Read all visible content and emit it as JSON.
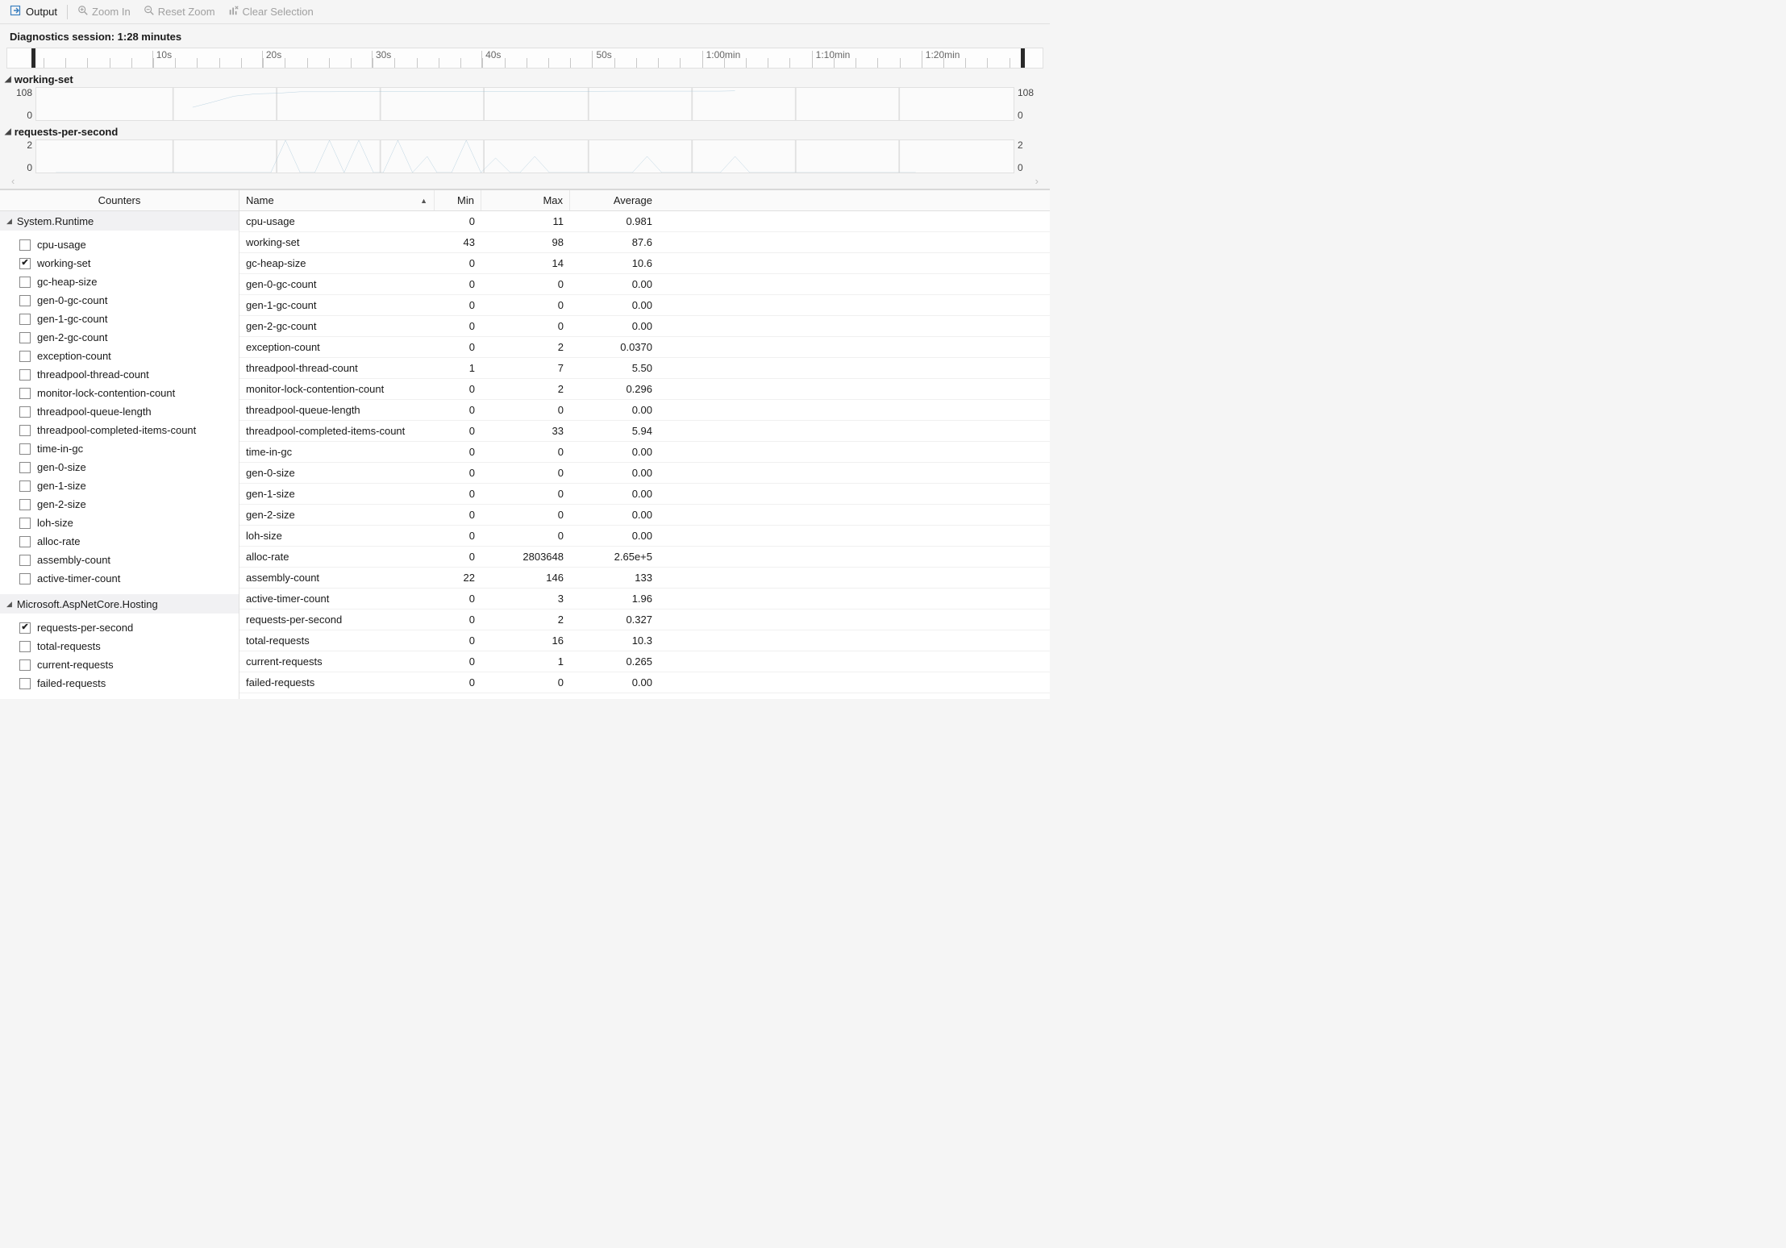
{
  "toolbar": {
    "output_label": "Output",
    "zoom_in_label": "Zoom In",
    "reset_zoom_label": "Reset Zoom",
    "clear_selection_label": "Clear Selection"
  },
  "session": {
    "label": "Diagnostics session: 1:28 minutes"
  },
  "timeline": {
    "duration_sec": 88,
    "majors": [
      {
        "pct": 14.0,
        "label": "10s"
      },
      {
        "pct": 24.6,
        "label": "20s"
      },
      {
        "pct": 35.2,
        "label": "30s"
      },
      {
        "pct": 45.8,
        "label": "40s"
      },
      {
        "pct": 56.5,
        "label": "50s"
      },
      {
        "pct": 67.1,
        "label": "1:00min"
      },
      {
        "pct": 77.7,
        "label": "1:10min"
      },
      {
        "pct": 88.3,
        "label": "1:20min"
      }
    ],
    "minor_step_pct": 2.12
  },
  "charts": [
    {
      "name": "working-set",
      "y_top": "108",
      "y_bottom": "0",
      "y_max": 108,
      "grid_color": "#e0e0e0",
      "line_color": "#9fc2d6",
      "vgrid_pct": [
        14.0,
        24.6,
        35.2,
        45.8,
        56.5,
        67.1,
        77.7,
        88.3
      ],
      "points": [
        [
          16.0,
          43
        ],
        [
          18.0,
          60
        ],
        [
          20.2,
          80
        ],
        [
          22.4,
          88
        ],
        [
          24.6,
          90
        ],
        [
          27,
          95
        ],
        [
          30,
          95
        ],
        [
          35,
          96
        ],
        [
          40,
          96
        ],
        [
          45,
          96
        ],
        [
          50,
          96
        ],
        [
          55,
          96
        ],
        [
          60,
          97
        ],
        [
          65,
          97
        ],
        [
          70,
          97
        ],
        [
          71.5,
          98
        ]
      ]
    },
    {
      "name": "requests-per-second",
      "y_top": "2",
      "y_bottom": "0",
      "y_max": 2,
      "grid_color": "#e0e0e0",
      "line_color": "#9fc2d6",
      "vgrid_pct": [
        14.0,
        24.6,
        35.2,
        45.8,
        56.5,
        67.1,
        77.7,
        88.3
      ],
      "points": [
        [
          2,
          0
        ],
        [
          24,
          0
        ],
        [
          25.5,
          2
        ],
        [
          27,
          0
        ],
        [
          28.5,
          0
        ],
        [
          30,
          2
        ],
        [
          31.5,
          0
        ],
        [
          33,
          2
        ],
        [
          34.5,
          0
        ],
        [
          35.5,
          0
        ],
        [
          37,
          2
        ],
        [
          38.5,
          0
        ],
        [
          40,
          1
        ],
        [
          41,
          0
        ],
        [
          42.5,
          0
        ],
        [
          44,
          2
        ],
        [
          45.5,
          0
        ],
        [
          47,
          0.9
        ],
        [
          48.5,
          0
        ],
        [
          49.5,
          0
        ],
        [
          51,
          1
        ],
        [
          52.5,
          0
        ],
        [
          61,
          0
        ],
        [
          62.5,
          1
        ],
        [
          64,
          0
        ],
        [
          70,
          0
        ],
        [
          71.5,
          1
        ],
        [
          73,
          0
        ],
        [
          90,
          0
        ]
      ]
    }
  ],
  "counters_panel": {
    "header": "Counters",
    "groups": [
      {
        "name": "System.Runtime",
        "items": [
          {
            "label": "cpu-usage",
            "checked": false
          },
          {
            "label": "working-set",
            "checked": true
          },
          {
            "label": "gc-heap-size",
            "checked": false
          },
          {
            "label": "gen-0-gc-count",
            "checked": false
          },
          {
            "label": "gen-1-gc-count",
            "checked": false
          },
          {
            "label": "gen-2-gc-count",
            "checked": false
          },
          {
            "label": "exception-count",
            "checked": false
          },
          {
            "label": "threadpool-thread-count",
            "checked": false
          },
          {
            "label": "monitor-lock-contention-count",
            "checked": false
          },
          {
            "label": "threadpool-queue-length",
            "checked": false
          },
          {
            "label": "threadpool-completed-items-count",
            "checked": false
          },
          {
            "label": "time-in-gc",
            "checked": false
          },
          {
            "label": "gen-0-size",
            "checked": false
          },
          {
            "label": "gen-1-size",
            "checked": false
          },
          {
            "label": "gen-2-size",
            "checked": false
          },
          {
            "label": "loh-size",
            "checked": false
          },
          {
            "label": "alloc-rate",
            "checked": false
          },
          {
            "label": "assembly-count",
            "checked": false
          },
          {
            "label": "active-timer-count",
            "checked": false
          }
        ]
      },
      {
        "name": "Microsoft.AspNetCore.Hosting",
        "items": [
          {
            "label": "requests-per-second",
            "checked": true
          },
          {
            "label": "total-requests",
            "checked": false
          },
          {
            "label": "current-requests",
            "checked": false
          },
          {
            "label": "failed-requests",
            "checked": false
          }
        ]
      }
    ]
  },
  "table": {
    "columns": {
      "name": "Name",
      "min": "Min",
      "max": "Max",
      "avg": "Average"
    },
    "rows": [
      {
        "name": "cpu-usage",
        "min": "0",
        "max": "11",
        "avg": "0.981"
      },
      {
        "name": "working-set",
        "min": "43",
        "max": "98",
        "avg": "87.6"
      },
      {
        "name": "gc-heap-size",
        "min": "0",
        "max": "14",
        "avg": "10.6"
      },
      {
        "name": "gen-0-gc-count",
        "min": "0",
        "max": "0",
        "avg": "0.00"
      },
      {
        "name": "gen-1-gc-count",
        "min": "0",
        "max": "0",
        "avg": "0.00"
      },
      {
        "name": "gen-2-gc-count",
        "min": "0",
        "max": "0",
        "avg": "0.00"
      },
      {
        "name": "exception-count",
        "min": "0",
        "max": "2",
        "avg": "0.0370"
      },
      {
        "name": "threadpool-thread-count",
        "min": "1",
        "max": "7",
        "avg": "5.50"
      },
      {
        "name": "monitor-lock-contention-count",
        "min": "0",
        "max": "2",
        "avg": "0.296"
      },
      {
        "name": "threadpool-queue-length",
        "min": "0",
        "max": "0",
        "avg": "0.00"
      },
      {
        "name": "threadpool-completed-items-count",
        "min": "0",
        "max": "33",
        "avg": "5.94"
      },
      {
        "name": "time-in-gc",
        "min": "0",
        "max": "0",
        "avg": "0.00"
      },
      {
        "name": "gen-0-size",
        "min": "0",
        "max": "0",
        "avg": "0.00"
      },
      {
        "name": "gen-1-size",
        "min": "0",
        "max": "0",
        "avg": "0.00"
      },
      {
        "name": "gen-2-size",
        "min": "0",
        "max": "0",
        "avg": "0.00"
      },
      {
        "name": "loh-size",
        "min": "0",
        "max": "0",
        "avg": "0.00"
      },
      {
        "name": "alloc-rate",
        "min": "0",
        "max": "2803648",
        "avg": "2.65e+5"
      },
      {
        "name": "assembly-count",
        "min": "22",
        "max": "146",
        "avg": "133"
      },
      {
        "name": "active-timer-count",
        "min": "0",
        "max": "3",
        "avg": "1.96"
      },
      {
        "name": "requests-per-second",
        "min": "0",
        "max": "2",
        "avg": "0.327"
      },
      {
        "name": "total-requests",
        "min": "0",
        "max": "16",
        "avg": "10.3"
      },
      {
        "name": "current-requests",
        "min": "0",
        "max": "1",
        "avg": "0.265"
      },
      {
        "name": "failed-requests",
        "min": "0",
        "max": "0",
        "avg": "0.00"
      }
    ]
  }
}
